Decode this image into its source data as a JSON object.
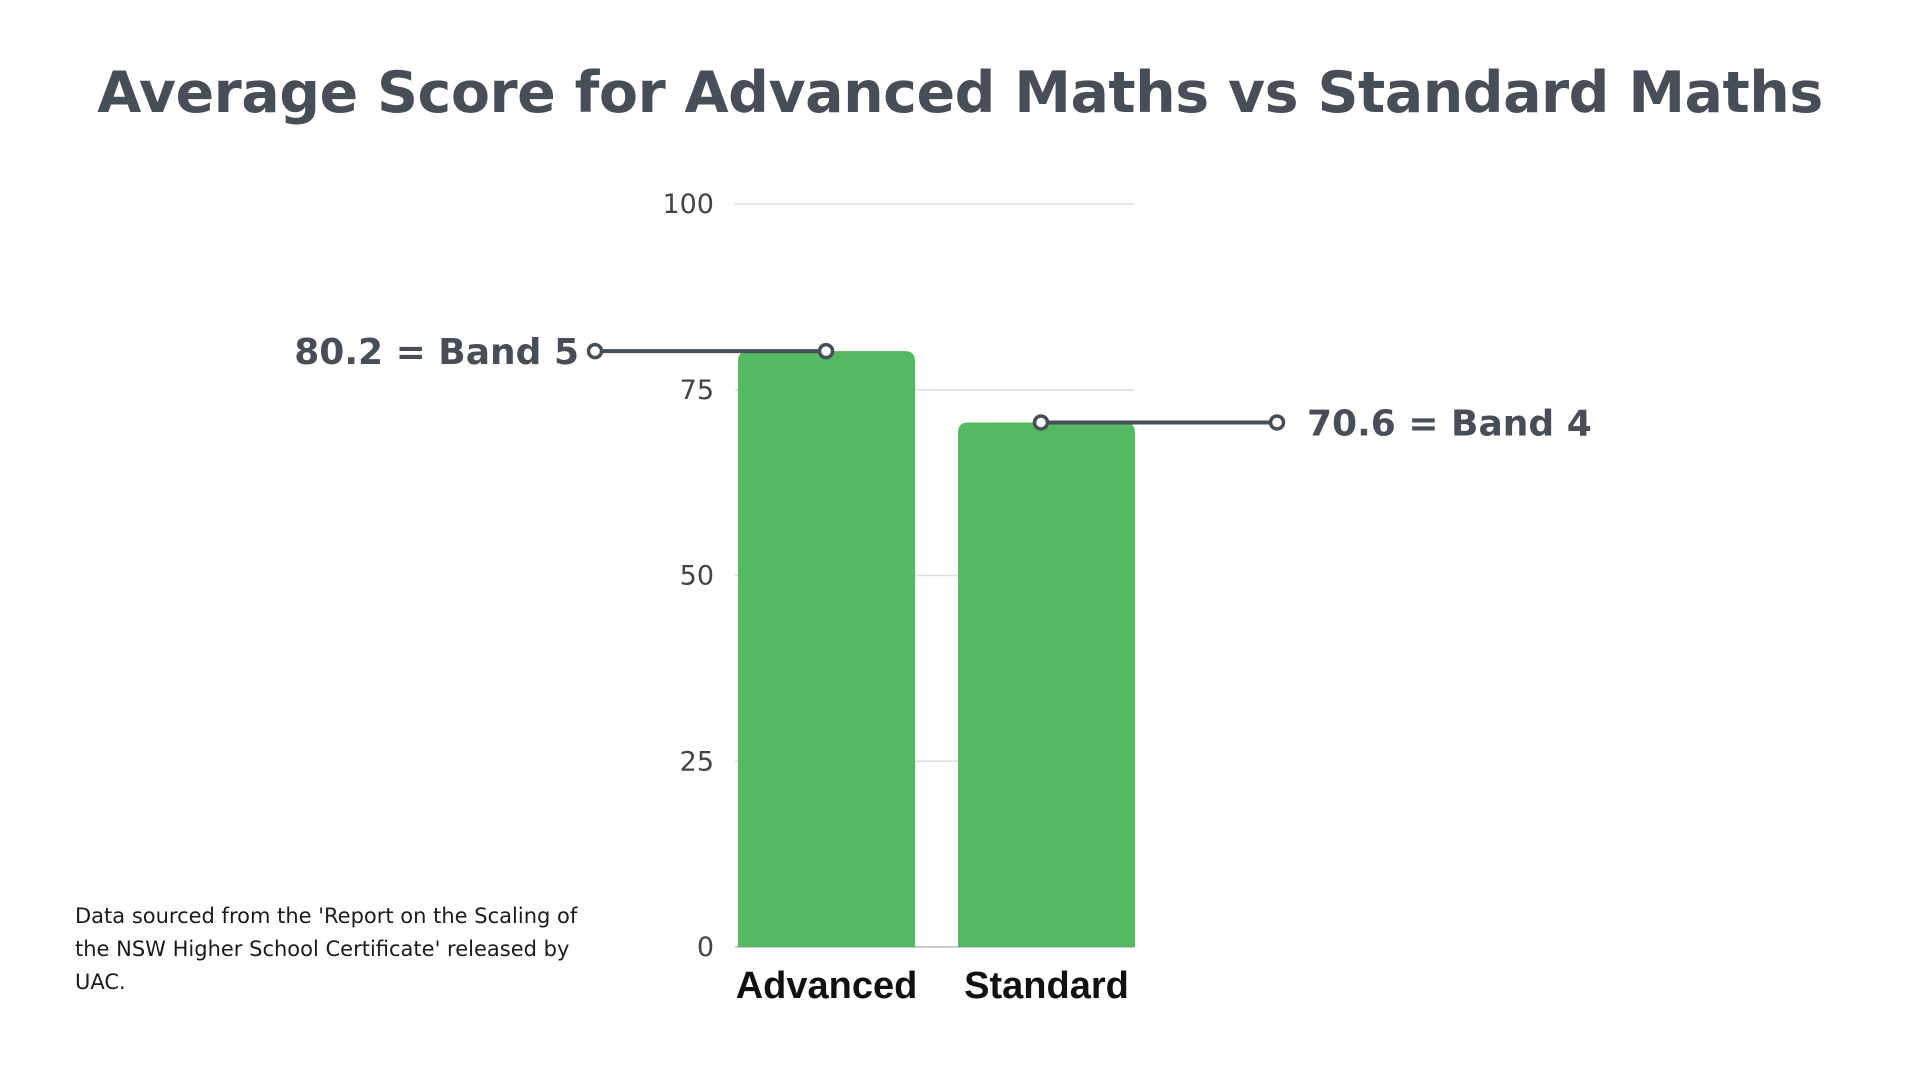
{
  "chart_data": {
    "type": "bar",
    "title": "Average Score for Advanced Maths vs Standard Maths",
    "xlabel": "",
    "ylabel": "",
    "categories": [
      "Advanced",
      "Standard"
    ],
    "values": [
      80.2,
      70.6
    ],
    "ylim": [
      0,
      100
    ],
    "yticks": [
      "0",
      "25",
      "50",
      "75",
      "100"
    ],
    "grid": true,
    "bar_color": "#55b862",
    "annotations": [
      {
        "category": "Advanced",
        "side": "left",
        "text": "80.2 = Band 5"
      },
      {
        "category": "Standard",
        "side": "right",
        "text": "70.6 = Band 4"
      }
    ],
    "source_note": "Data sourced from the 'Report on the Scaling of the NSW Higher School Certificate' released by UAC."
  },
  "colors": {
    "title": "#484e57",
    "annotation": "#484e57",
    "bar": "#55b862",
    "grid": "#dddddd",
    "tick_label": "#444444",
    "category_label": "#111111"
  }
}
